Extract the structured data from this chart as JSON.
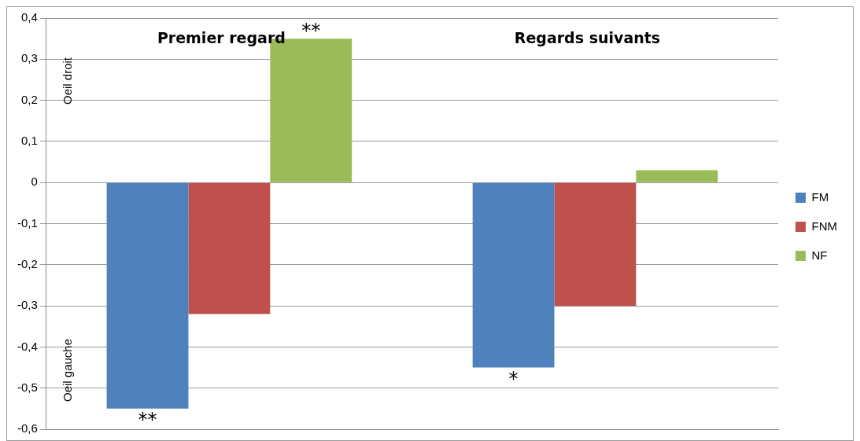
{
  "chart_data": {
    "type": "bar",
    "categories": [
      "Premier regard",
      "Regards suivants"
    ],
    "series": [
      {
        "name": "FM",
        "color": "#4f81bd",
        "values": [
          -0.55,
          -0.45
        ]
      },
      {
        "name": "FNM",
        "color": "#c0504d",
        "values": [
          -0.32,
          -0.3
        ]
      },
      {
        "name": "NF",
        "color": "#9bbb59",
        "values": [
          0.35,
          0.03
        ]
      }
    ],
    "ylim": [
      -0.6,
      0.4
    ],
    "yticks": [
      {
        "value": -0.6,
        "label": "-0,6"
      },
      {
        "value": -0.5,
        "label": "-0,5"
      },
      {
        "value": -0.4,
        "label": "-0,4"
      },
      {
        "value": -0.3,
        "label": "-0,3"
      },
      {
        "value": -0.2,
        "label": "-0,2"
      },
      {
        "value": -0.1,
        "label": "-0,1"
      },
      {
        "value": 0,
        "label": "0"
      },
      {
        "value": 0.1,
        "label": "0,1"
      },
      {
        "value": 0.2,
        "label": "0,2"
      },
      {
        "value": 0.3,
        "label": "0,3"
      },
      {
        "value": 0.4,
        "label": "0,4"
      }
    ],
    "annotations": [
      "Oeil droit",
      "Oeil gauche",
      "**",
      "**",
      "*"
    ],
    "grid": "y",
    "legend": "right"
  }
}
